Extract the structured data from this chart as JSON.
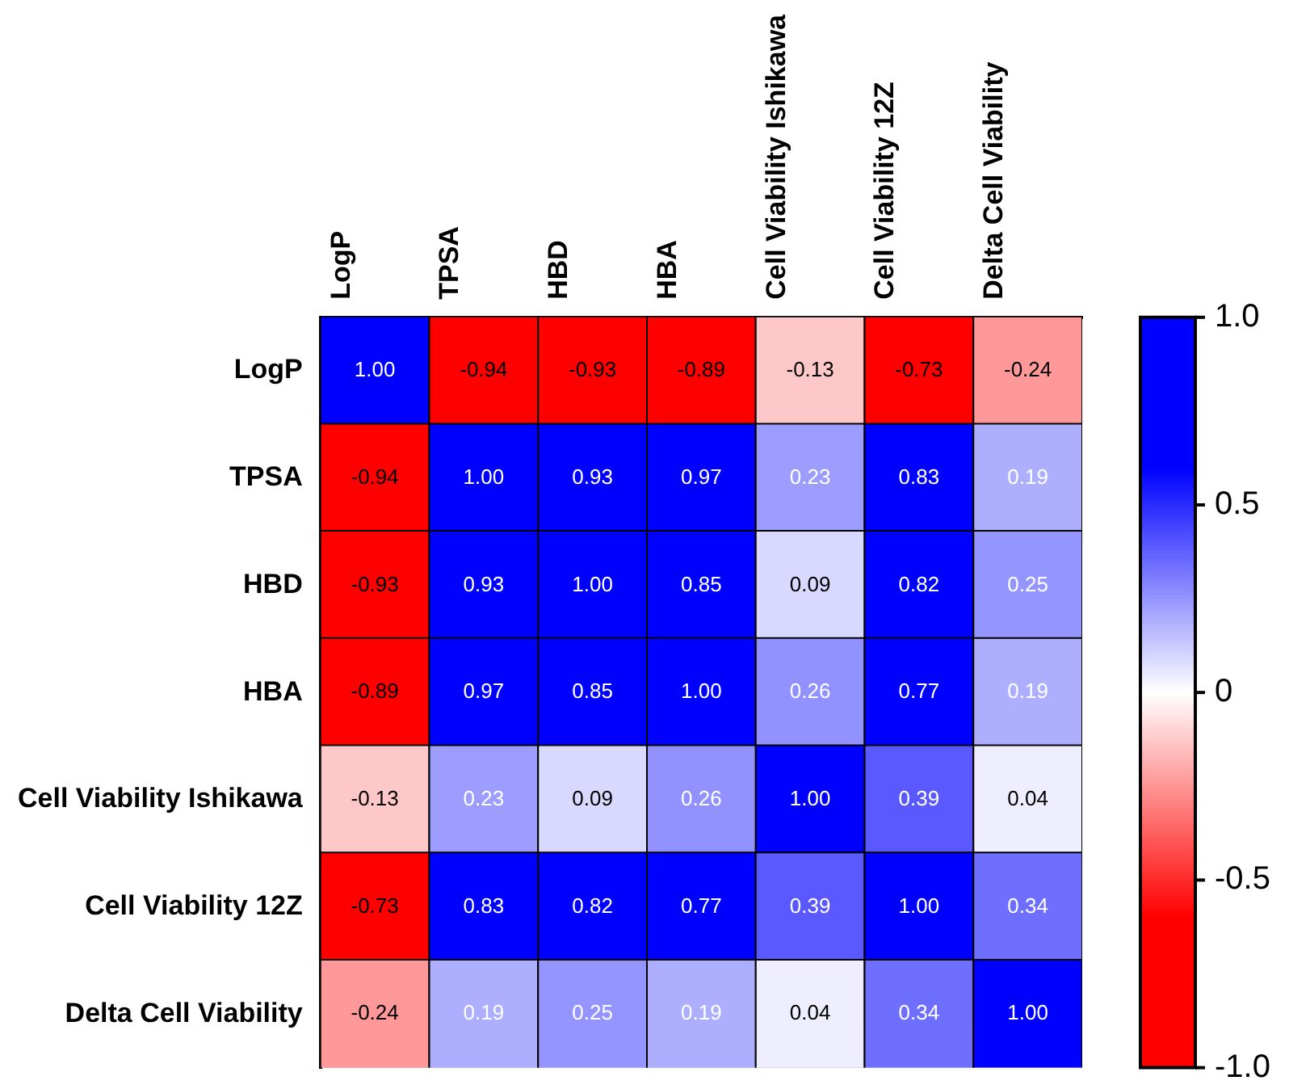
{
  "chart_data": {
    "type": "heatmap",
    "categories": [
      "LogP",
      "TPSA",
      "HBD",
      "HBA",
      "Cell Viability Ishikawa",
      "Cell Viability 12Z",
      "Delta Cell Viability"
    ],
    "y_categories": [
      "LogP",
      "TPSA",
      "HBD",
      "HBA",
      "Cell Viability Ishikawa",
      "Cell Viability 12Z",
      "Delta Cell Viability"
    ],
    "cells": [
      [
        1.0,
        -0.94,
        -0.93,
        -0.89,
        -0.13,
        -0.73,
        -0.24
      ],
      [
        -0.94,
        1.0,
        0.93,
        0.97,
        0.23,
        0.83,
        0.19
      ],
      [
        -0.93,
        0.93,
        1.0,
        0.85,
        0.09,
        0.82,
        0.25
      ],
      [
        -0.89,
        0.97,
        0.85,
        1.0,
        0.26,
        0.77,
        0.19
      ],
      [
        -0.13,
        0.23,
        0.09,
        0.26,
        1.0,
        0.39,
        0.04
      ],
      [
        -0.73,
        0.83,
        0.82,
        0.77,
        0.39,
        1.0,
        0.34
      ],
      [
        -0.24,
        0.19,
        0.25,
        0.19,
        0.04,
        0.34,
        1.0
      ]
    ],
    "cell_labels": [
      [
        "1.00",
        "-0.94",
        "-0.93",
        "-0.89",
        "-0.13",
        "-0.73",
        "-0.24"
      ],
      [
        "-0.94",
        "1.00",
        "0.93",
        "0.97",
        "0.23",
        "0.83",
        "0.19"
      ],
      [
        "-0.93",
        "0.93",
        "1.00",
        "0.85",
        "0.09",
        "0.82",
        "0.25"
      ],
      [
        "-0.89",
        "0.97",
        "0.85",
        "1.00",
        "0.26",
        "0.77",
        "0.19"
      ],
      [
        "-0.13",
        "0.23",
        "0.09",
        "0.26",
        "1.00",
        "0.39",
        "0.04"
      ],
      [
        "-0.73",
        "0.83",
        "0.82",
        "0.77",
        "0.39",
        "1.00",
        "0.34"
      ],
      [
        "-0.24",
        "0.19",
        "0.25",
        "0.19",
        "0.04",
        "0.34",
        "1.00"
      ]
    ],
    "clim": [
      -1,
      1
    ],
    "cticks": [
      {
        "value": 1,
        "label": "1.0"
      },
      {
        "value": 0.5,
        "label": "0.5"
      },
      {
        "value": 0,
        "label": "0"
      },
      {
        "value": -0.5,
        "label": "-0.5"
      },
      {
        "value": -1,
        "label": "-1.0"
      }
    ]
  }
}
